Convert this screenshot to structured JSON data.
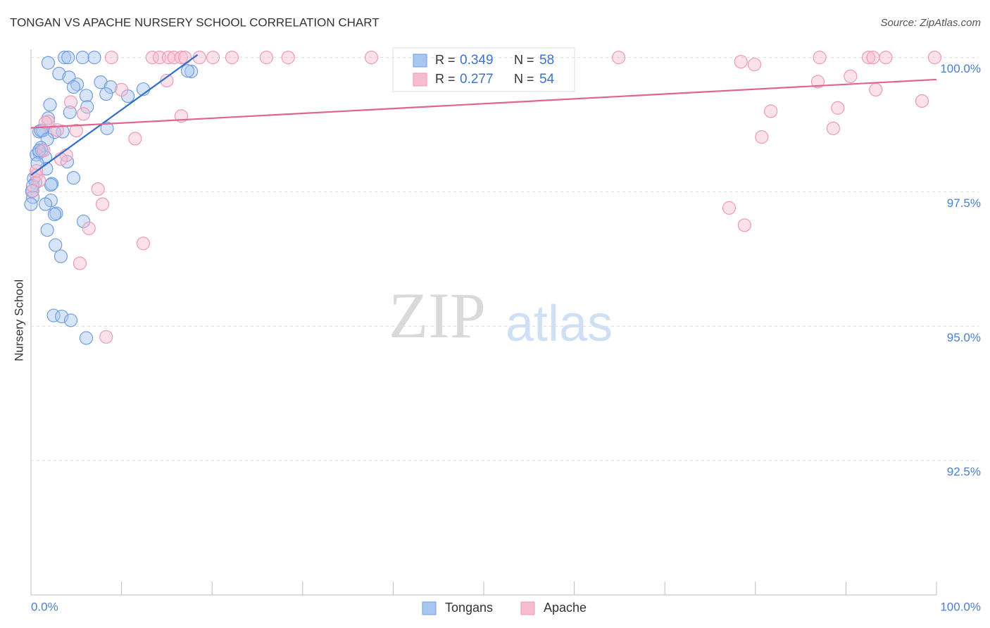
{
  "chart_data": {
    "type": "scatter",
    "title": "TONGAN VS APACHE NURSERY SCHOOL CORRELATION CHART",
    "source": "Source: ZipAtlas.com",
    "watermark": [
      "ZIP",
      "atlas"
    ],
    "y_label": "Nursery School",
    "xlim": [
      0,
      100
    ],
    "ylim": [
      90,
      100.1
    ],
    "xticks": [
      {
        "value": 0,
        "label": "0.0%"
      },
      {
        "value": 100,
        "label": "100.0%"
      }
    ],
    "xminor_ticks": [
      10,
      20,
      30,
      40,
      50,
      60,
      70,
      80,
      90
    ],
    "yticks": [
      {
        "value": 100,
        "label": "100.0%"
      },
      {
        "value": 97.5,
        "label": "97.5%"
      },
      {
        "value": 95,
        "label": "95.0%"
      },
      {
        "value": 92.5,
        "label": "92.5%"
      }
    ],
    "grid": true,
    "stat_labels": {
      "r": "R =",
      "n": "N ="
    },
    "series": [
      {
        "name": "Tongans",
        "color": "#6f9ee0",
        "fill": "#a9c6f0",
        "line_color": "#2f6fce",
        "r": 0.349,
        "n": 58,
        "x": [
          3.7,
          4.1,
          5.7,
          7.0,
          1.9,
          3.1,
          4.2,
          5.1,
          4.7,
          7.7,
          8.8,
          6.1,
          8.3,
          10.7,
          12.4,
          6.2,
          2.1,
          4.3,
          1.9,
          0.9,
          1.3,
          1.1,
          3.5,
          2.6,
          8.4,
          1.8,
          1.1,
          0.9,
          0.6,
          1.2,
          1.6,
          4.0,
          1.7,
          4.7,
          0.3,
          0.5,
          2.3,
          2.2,
          0.1,
          0.2,
          0,
          2.2,
          1.6,
          2.8,
          2.6,
          5.8,
          1.8,
          2.7,
          3.3,
          2.5,
          3.4,
          4.4,
          6.1,
          17.7,
          17.3,
          0.7,
          0.2,
          0.9
        ],
        "values": [
          100,
          100,
          100,
          100,
          99.9,
          99.7,
          99.63,
          99.5,
          99.45,
          99.54,
          99.45,
          99.29,
          99.32,
          99.28,
          99.41,
          99.08,
          99.12,
          98.98,
          98.87,
          98.62,
          98.64,
          98.64,
          98.62,
          98.61,
          98.68,
          98.48,
          98.32,
          98.23,
          98.19,
          98.27,
          98.14,
          98.06,
          97.93,
          97.76,
          97.75,
          97.67,
          97.65,
          97.63,
          97.51,
          97.4,
          97.27,
          97.34,
          97.27,
          97.1,
          97.08,
          96.95,
          96.79,
          96.51,
          96.3,
          95.2,
          95.18,
          95.11,
          94.78,
          99.74,
          99.75,
          98.03,
          97.61,
          98.27
        ],
        "trend": {
          "x": [
            0,
            18.4
          ],
          "values": [
            97.81,
            100.05
          ]
        }
      },
      {
        "name": "Apache",
        "color": "#ee9ab6",
        "fill": "#f7bcd0",
        "line_color": "#e0648e",
        "r": 0.277,
        "n": 54,
        "x": [
          8.9,
          13.4,
          14.2,
          15.2,
          15.8,
          16.6,
          17.0,
          18.6,
          20.1,
          22.2,
          26.0,
          28.4,
          37.6,
          64.9,
          87.1,
          92.5,
          93.0,
          94.4,
          99.8,
          78.4,
          79.9,
          90.5,
          86.9,
          93.3,
          10.0,
          15.0,
          4.4,
          5.8,
          16.6,
          81.7,
          89.1,
          98.4,
          1.9,
          5.0,
          11.5,
          80.7,
          88.6,
          3.9,
          3.3,
          0.6,
          0.9,
          7.4,
          7.9,
          77.1,
          78.8,
          6.4,
          12.4,
          5.4,
          8.3,
          0.2,
          0.6,
          1.4,
          1.6,
          2.9
        ],
        "values": [
          100,
          100,
          100,
          100,
          100,
          100,
          100,
          100,
          100,
          100,
          100,
          100,
          100,
          100,
          100,
          100,
          100,
          100,
          100,
          99.92,
          99.87,
          99.65,
          99.55,
          99.4,
          99.4,
          99.57,
          99.17,
          98.95,
          98.91,
          99.0,
          99.06,
          99.19,
          98.81,
          98.64,
          98.49,
          98.52,
          98.68,
          98.18,
          98.11,
          97.81,
          97.71,
          97.55,
          97.27,
          97.2,
          96.88,
          96.82,
          96.54,
          96.17,
          94.8,
          97.52,
          97.89,
          98.27,
          98.79,
          98.65
        ],
        "trend": {
          "x": [
            0,
            100
          ],
          "values": [
            98.69,
            99.59
          ]
        }
      }
    ]
  }
}
